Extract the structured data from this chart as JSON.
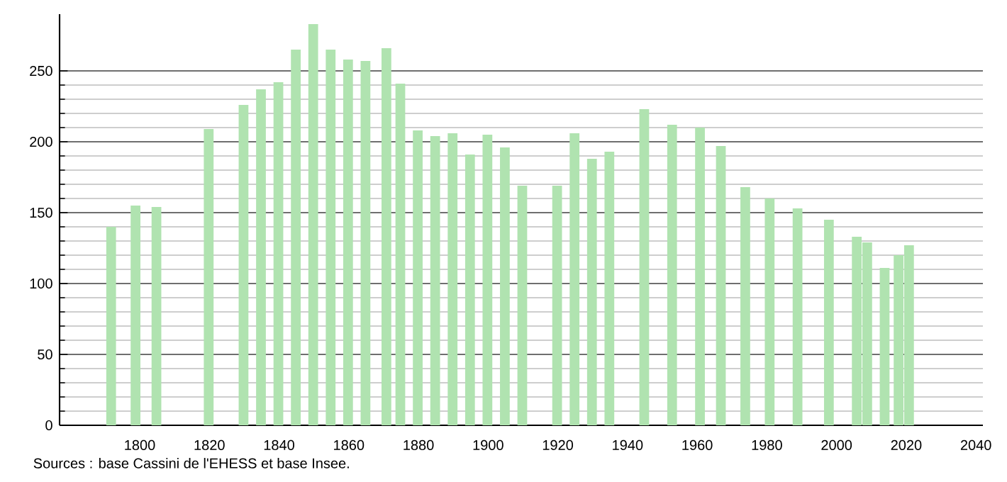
{
  "chart_data": {
    "type": "bar",
    "x": [
      1793,
      1800,
      1806,
      1821,
      1831,
      1836,
      1841,
      1846,
      1851,
      1856,
      1861,
      1866,
      1872,
      1876,
      1881,
      1886,
      1891,
      1896,
      1901,
      1906,
      1911,
      1921,
      1926,
      1931,
      1936,
      1946,
      1954,
      1962,
      1968,
      1975,
      1982,
      1990,
      1999,
      2007,
      2010,
      2015,
      2019,
      2022
    ],
    "values": [
      140,
      155,
      154,
      209,
      226,
      237,
      242,
      265,
      283,
      265,
      258,
      257,
      266,
      241,
      208,
      204,
      206,
      191,
      205,
      196,
      169,
      169,
      206,
      188,
      193,
      223,
      212,
      210,
      197,
      168,
      160,
      153,
      145,
      133,
      129,
      111,
      120,
      127
    ],
    "color": "#b0e3b0",
    "xlim": [
      1777,
      2042
    ],
    "ylim": [
      0,
      290
    ],
    "xticks": [
      1800,
      1820,
      1840,
      1860,
      1880,
      1900,
      1920,
      1940,
      1960,
      1980,
      2000,
      2020,
      2040
    ],
    "yticks": [
      0,
      50,
      100,
      150,
      200,
      250
    ],
    "grid": "y",
    "annotations": [
      "Sources : base Cassini de l'EHESS et base Insee."
    ]
  }
}
